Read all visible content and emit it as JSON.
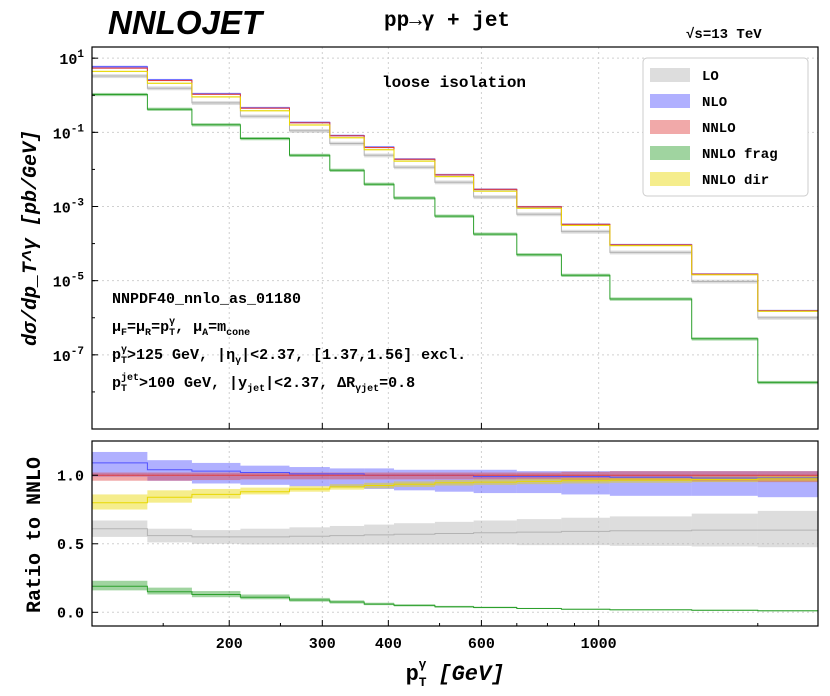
{
  "header": {
    "logo": "NNLOJET",
    "process": "pp→γ + jet",
    "energy_prefix": "√s",
    "energy_value": "=13 TeV"
  },
  "chart_data": [
    {
      "type": "line",
      "title": "pp→γ + jet",
      "xlabel": "p_T^γ [GeV]",
      "ylabel": "dσ/dp_T^γ [pb/GeV]",
      "xscale": "log",
      "yscale": "log",
      "xlim": [
        110,
        2600
      ],
      "ylim": [
        1e-09,
        20
      ],
      "bin_edges": [
        110,
        140,
        170,
        210,
        260,
        310,
        360,
        410,
        490,
        580,
        700,
        850,
        1050,
        1500,
        2000,
        2600
      ],
      "series": [
        {
          "name": "LO",
          "color": "#b3b3b3",
          "values": [
            3.3,
            1.55,
            0.62,
            0.27,
            0.11,
            0.05,
            0.024,
            0.0115,
            0.0045,
            0.0018,
            0.00062,
            0.00021,
            5.8e-05,
            9.5e-06,
            1e-06
          ],
          "rel_band": 0.12
        },
        {
          "name": "NLO",
          "color": "#5050ff",
          "values": [
            5.9,
            2.6,
            1.1,
            0.46,
            0.185,
            0.082,
            0.04,
            0.019,
            0.0072,
            0.0029,
            0.00098,
            0.00033,
            9.3e-05,
            1.5e-05,
            1.55e-06
          ],
          "rel_band": 0.06
        },
        {
          "name": "NNLO",
          "color": "#e04040",
          "values": [
            5.4,
            2.5,
            1.07,
            0.45,
            0.182,
            0.081,
            0.039,
            0.0188,
            0.0071,
            0.0029,
            0.00098,
            0.00033,
            9.2e-05,
            1.5e-05,
            1.55e-06
          ],
          "rel_band": 0.04
        },
        {
          "name": "NNLO frag",
          "color": "#2ca02c",
          "values": [
            1.05,
            0.42,
            0.16,
            0.068,
            0.024,
            0.0095,
            0.004,
            0.0017,
            0.00055,
            0.00018,
            5e-05,
            1.4e-05,
            3.2e-06,
            2.7e-07,
            1.8e-08
          ],
          "rel_band": 0.1
        },
        {
          "name": "NNLO dir",
          "color": "#e8d800",
          "values": [
            4.4,
            2.1,
            0.9,
            0.38,
            0.158,
            0.071,
            0.034,
            0.0168,
            0.0064,
            0.0026,
            0.0009,
            0.00031,
            8.8e-05,
            1.45e-05,
            1.5e-06
          ],
          "rel_band": 0.04
        }
      ],
      "yticks": [
        {
          "label": "10",
          "exp": "1",
          "value": 10
        },
        {
          "label": "10",
          "exp": "-1",
          "value": 0.1
        },
        {
          "label": "10",
          "exp": "-3",
          "value": 0.001
        },
        {
          "label": "10",
          "exp": "-5",
          "value": 1e-05
        },
        {
          "label": "10",
          "exp": "-7",
          "value": 1e-07
        }
      ],
      "annotations": {
        "isolation": "loose isolation",
        "pdf": "NNPDF40_nnlo_as_01180",
        "scales": {
          "mu": "μ",
          "f": "F",
          "eq1": "=μ",
          "r": "R",
          "eq2": "=p",
          "t": "T",
          "gamma": "γ",
          "comma": ",  μ",
          "a": "A",
          "eq3": "=m",
          "cone": "cone"
        },
        "cut1": {
          "p": "p",
          "t": "T",
          "gamma": "γ",
          "text1": ">125 GeV, |η",
          "gamma2": "γ",
          "text2": "|<2.37, [1.37,1.56] excl."
        },
        "cut2": {
          "p": "p",
          "t": "T",
          "jet": "jet",
          "text1": ">100 GeV, |y",
          "jet2": "jet",
          "text2": "|<2.37, ΔR",
          "gj": "γjet",
          "text3": "=0.8"
        }
      },
      "legend": {
        "placement": "top-right",
        "entries": [
          "LO",
          "NLO",
          "NNLO",
          "NNLO frag",
          "NNLO dir"
        ]
      },
      "grid": true
    },
    {
      "type": "line",
      "ylabel": "Ratio to NNLO",
      "xscale": "log",
      "xlim": [
        110,
        2600
      ],
      "ylim": [
        -0.1,
        1.25
      ],
      "bin_edges": [
        110,
        140,
        170,
        210,
        260,
        310,
        360,
        410,
        490,
        580,
        700,
        850,
        1050,
        1500,
        2000,
        2600
      ],
      "series": [
        {
          "name": "LO",
          "color": "#b3b3b3",
          "values": [
            0.61,
            0.56,
            0.55,
            0.55,
            0.555,
            0.56,
            0.565,
            0.57,
            0.575,
            0.58,
            0.585,
            0.59,
            0.595,
            0.6,
            0.6
          ],
          "lo": [
            0.55,
            0.51,
            0.5,
            0.495,
            0.495,
            0.495,
            0.495,
            0.495,
            0.495,
            0.495,
            0.49,
            0.49,
            0.485,
            0.48,
            0.475
          ],
          "hi": [
            0.67,
            0.61,
            0.6,
            0.61,
            0.62,
            0.63,
            0.64,
            0.65,
            0.66,
            0.67,
            0.68,
            0.69,
            0.7,
            0.72,
            0.74
          ]
        },
        {
          "name": "NLO",
          "color": "#5050ff",
          "values": [
            1.09,
            1.04,
            1.03,
            1.02,
            1.01,
            1.01,
            1.0,
            1.0,
            1.0,
            0.99,
            0.99,
            0.99,
            0.985,
            0.98,
            0.98
          ],
          "lo": [
            0.99,
            0.96,
            0.94,
            0.93,
            0.92,
            0.91,
            0.9,
            0.89,
            0.88,
            0.87,
            0.87,
            0.86,
            0.85,
            0.85,
            0.84
          ],
          "hi": [
            1.17,
            1.11,
            1.09,
            1.07,
            1.06,
            1.05,
            1.05,
            1.04,
            1.04,
            1.04,
            1.03,
            1.03,
            1.03,
            1.03,
            1.03
          ]
        },
        {
          "name": "NNLO",
          "color": "#e04040",
          "values": [
            1.0,
            1.0,
            1.0,
            1.0,
            1.0,
            1.0,
            1.0,
            1.0,
            1.0,
            1.0,
            1.0,
            1.0,
            1.0,
            1.0,
            1.0
          ],
          "lo": [
            0.96,
            0.96,
            0.965,
            0.97,
            0.97,
            0.97,
            0.97,
            0.97,
            0.97,
            0.97,
            0.97,
            0.965,
            0.96,
            0.955,
            0.95
          ],
          "hi": [
            1.02,
            1.02,
            1.02,
            1.02,
            1.02,
            1.02,
            1.02,
            1.02,
            1.02,
            1.02,
            1.02,
            1.025,
            1.03,
            1.03,
            1.03
          ]
        },
        {
          "name": "NNLO frag",
          "color": "#2ca02c",
          "values": [
            0.19,
            0.15,
            0.13,
            0.11,
            0.09,
            0.075,
            0.06,
            0.05,
            0.04,
            0.035,
            0.028,
            0.022,
            0.018,
            0.015,
            0.012
          ],
          "lo": [
            0.16,
            0.13,
            0.11,
            0.095,
            0.078,
            0.064,
            0.052,
            0.043,
            0.034,
            0.03,
            0.024,
            0.019,
            0.015,
            0.013,
            0.01
          ],
          "hi": [
            0.23,
            0.18,
            0.155,
            0.13,
            0.105,
            0.087,
            0.07,
            0.058,
            0.047,
            0.041,
            0.032,
            0.026,
            0.021,
            0.018,
            0.014
          ]
        },
        {
          "name": "NNLO dir",
          "color": "#e8d800",
          "values": [
            0.8,
            0.84,
            0.86,
            0.88,
            0.9,
            0.915,
            0.925,
            0.935,
            0.945,
            0.95,
            0.955,
            0.96,
            0.965,
            0.97,
            0.975
          ],
          "lo": [
            0.75,
            0.8,
            0.83,
            0.86,
            0.88,
            0.895,
            0.905,
            0.915,
            0.925,
            0.93,
            0.935,
            0.94,
            0.945,
            0.95,
            0.955
          ],
          "hi": [
            0.86,
            0.89,
            0.9,
            0.91,
            0.92,
            0.935,
            0.945,
            0.955,
            0.965,
            0.97,
            0.975,
            0.98,
            0.985,
            0.99,
            0.995
          ]
        }
      ],
      "yticks": [
        {
          "label": "0.0",
          "value": 0
        },
        {
          "label": "0.5",
          "value": 0.5
        },
        {
          "label": "1.0",
          "value": 1.0
        }
      ],
      "xticks": [
        {
          "label": "200",
          "value": 200
        },
        {
          "label": "300",
          "value": 300
        },
        {
          "label": "400",
          "value": 400
        },
        {
          "label": "600",
          "value": 600
        },
        {
          "label": "1000",
          "value": 1000
        }
      ],
      "xlabel": {
        "p": "p",
        "t": "T",
        "gamma": "γ",
        "unit": "[GeV]"
      }
    }
  ]
}
